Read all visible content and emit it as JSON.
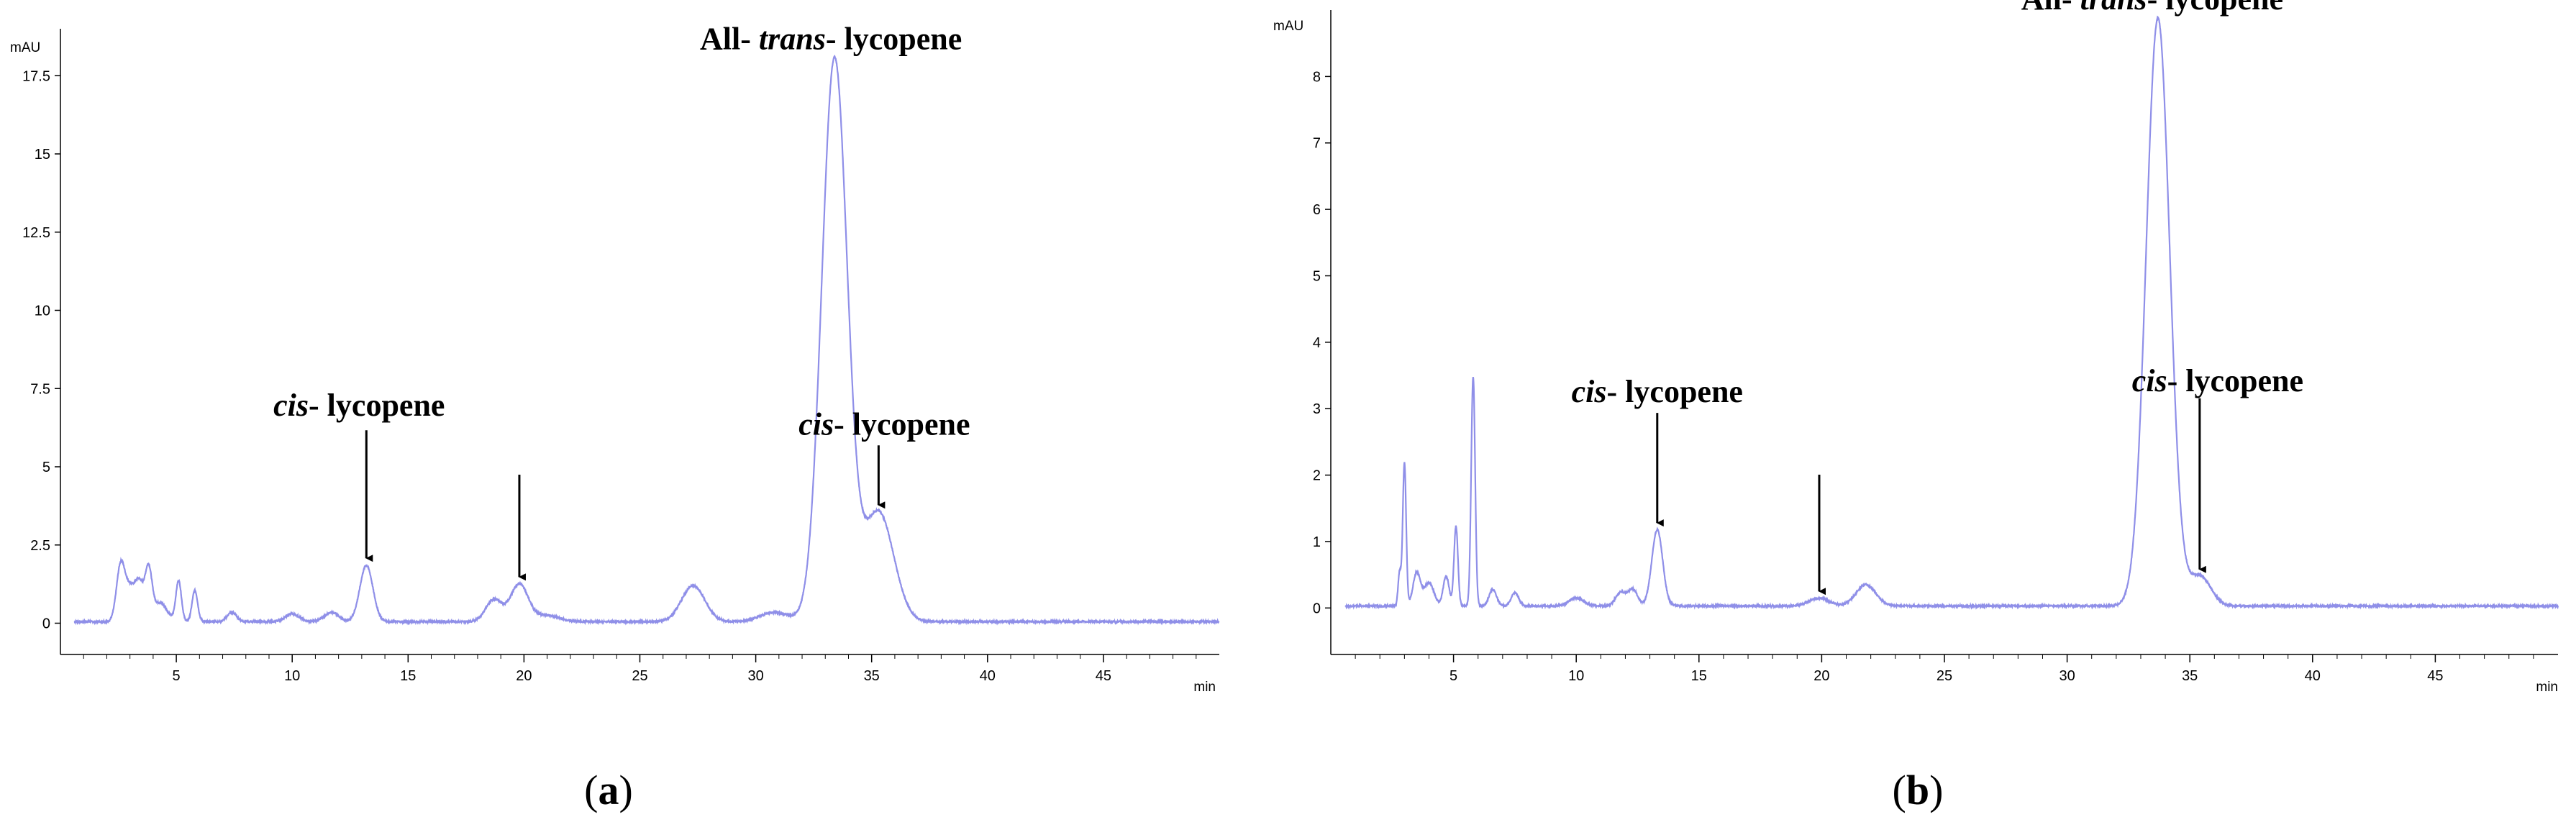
{
  "chart_data": [
    {
      "type": "line",
      "panel_label": {
        "open": "(",
        "letter": "a",
        "close": ")"
      },
      "ylabel": "mAU",
      "xlabel": "min",
      "xlim": [
        0,
        50
      ],
      "ylim": [
        -1,
        19
      ],
      "x_ticks": [
        {
          "value": 5,
          "label": "5"
        },
        {
          "value": 10,
          "label": "10"
        },
        {
          "value": 15,
          "label": "15"
        },
        {
          "value": 20,
          "label": "20"
        },
        {
          "value": 25,
          "label": "25"
        },
        {
          "value": 30,
          "label": "30"
        },
        {
          "value": 35,
          "label": "35"
        },
        {
          "value": 40,
          "label": "40"
        },
        {
          "value": 45,
          "label": "45"
        }
      ],
      "y_ticks": [
        {
          "value": 0,
          "label": "0"
        },
        {
          "value": 2.5,
          "label": "2.5"
        },
        {
          "value": 5,
          "label": "5"
        },
        {
          "value": 7.5,
          "label": "7.5"
        },
        {
          "value": 10,
          "label": "10"
        },
        {
          "value": 12.5,
          "label": "12.5"
        },
        {
          "value": 15,
          "label": "15"
        },
        {
          "value": 17.5,
          "label": "17.5"
        }
      ],
      "line_color": "#8f8fe8",
      "baseline": 0.05,
      "peaks": [
        {
          "x": 2.6,
          "height": 1.8,
          "width": 0.18
        },
        {
          "x": 3.0,
          "height": 1.0,
          "width": 0.2
        },
        {
          "x": 3.4,
          "height": 1.2,
          "width": 0.18
        },
        {
          "x": 3.8,
          "height": 1.6,
          "width": 0.15
        },
        {
          "x": 4.3,
          "height": 0.6,
          "width": 0.3
        },
        {
          "x": 5.1,
          "height": 1.3,
          "width": 0.12
        },
        {
          "x": 5.8,
          "height": 1.0,
          "width": 0.12
        },
        {
          "x": 7.4,
          "height": 0.3,
          "width": 0.2
        },
        {
          "x": 10.0,
          "height": 0.25,
          "width": 0.3
        },
        {
          "x": 11.7,
          "height": 0.3,
          "width": 0.3
        },
        {
          "x": 13.2,
          "height": 1.8,
          "width": 0.28
        },
        {
          "x": 18.7,
          "height": 0.7,
          "width": 0.35
        },
        {
          "x": 19.8,
          "height": 1.2,
          "width": 0.38
        },
        {
          "x": 21.0,
          "height": 0.2,
          "width": 0.5
        },
        {
          "x": 27.3,
          "height": 1.15,
          "width": 0.5
        },
        {
          "x": 30.8,
          "height": 0.3,
          "width": 0.6
        },
        {
          "x": 33.4,
          "height": 18.0,
          "width": 0.55
        },
        {
          "x": 35.3,
          "height": 3.5,
          "width": 0.65
        }
      ],
      "annotations": [
        {
          "text_italic": "cis",
          "text_rest": "- lycopene",
          "x": 13.2,
          "y": 1.8
        },
        {
          "x": 19.8,
          "y": 1.2
        },
        {
          "text_prefix": "All- ",
          "text_italic": "trans",
          "text_rest": "- lycopene",
          "x": 33.4,
          "y": 18.0
        },
        {
          "text_italic": "cis",
          "text_rest": "- lycopene",
          "x": 35.3,
          "y": 3.5
        }
      ]
    },
    {
      "type": "line",
      "panel_label": {
        "open": "(",
        "letter": "b",
        "close": ")"
      },
      "ylabel": "mAU",
      "xlabel": "min",
      "xlim": [
        0,
        50
      ],
      "ylim": [
        -0.7,
        9
      ],
      "x_ticks": [
        {
          "value": 5,
          "label": "5"
        },
        {
          "value": 10,
          "label": "10"
        },
        {
          "value": 15,
          "label": "15"
        },
        {
          "value": 20,
          "label": "20"
        },
        {
          "value": 25,
          "label": "25"
        },
        {
          "value": 30,
          "label": "30"
        },
        {
          "value": 35,
          "label": "35"
        },
        {
          "value": 40,
          "label": "40"
        },
        {
          "value": 45,
          "label": "45"
        }
      ],
      "y_ticks": [
        {
          "value": 0,
          "label": "0"
        },
        {
          "value": 1,
          "label": "1"
        },
        {
          "value": 2,
          "label": "2"
        },
        {
          "value": 3,
          "label": "3"
        },
        {
          "value": 4,
          "label": "4"
        },
        {
          "value": 5,
          "label": "5"
        },
        {
          "value": 6,
          "label": "6"
        },
        {
          "value": 7,
          "label": "7"
        },
        {
          "value": 8,
          "label": "8"
        }
      ],
      "line_color": "#8f8fe8",
      "baseline": 0.03,
      "peaks": [
        {
          "x": 2.8,
          "height": 0.5,
          "width": 0.06
        },
        {
          "x": 3.0,
          "height": 2.15,
          "width": 0.07
        },
        {
          "x": 3.5,
          "height": 0.5,
          "width": 0.15
        },
        {
          "x": 4.0,
          "height": 0.35,
          "width": 0.2
        },
        {
          "x": 4.7,
          "height": 0.45,
          "width": 0.12
        },
        {
          "x": 5.1,
          "height": 1.2,
          "width": 0.08
        },
        {
          "x": 5.8,
          "height": 3.45,
          "width": 0.08
        },
        {
          "x": 6.6,
          "height": 0.25,
          "width": 0.15
        },
        {
          "x": 7.5,
          "height": 0.2,
          "width": 0.15
        },
        {
          "x": 10.0,
          "height": 0.12,
          "width": 0.3
        },
        {
          "x": 11.8,
          "height": 0.2,
          "width": 0.2
        },
        {
          "x": 12.3,
          "height": 0.25,
          "width": 0.2
        },
        {
          "x": 13.3,
          "height": 1.15,
          "width": 0.22
        },
        {
          "x": 19.9,
          "height": 0.12,
          "width": 0.4
        },
        {
          "x": 21.8,
          "height": 0.32,
          "width": 0.4
        },
        {
          "x": 33.7,
          "height": 8.85,
          "width": 0.48
        },
        {
          "x": 35.4,
          "height": 0.45,
          "width": 0.45
        }
      ],
      "annotations": [
        {
          "text_italic": "cis",
          "text_rest": "- lycopene",
          "x": 13.3,
          "y": 1.15
        },
        {
          "x": 19.9,
          "y": 0.12
        },
        {
          "text_prefix": "All- ",
          "text_italic": "trans",
          "text_rest": "- lycopene",
          "x": 33.7,
          "y": 8.85
        },
        {
          "text_italic": "cis",
          "text_rest": "- lycopene",
          "x": 35.4,
          "y": 0.45
        }
      ]
    }
  ]
}
